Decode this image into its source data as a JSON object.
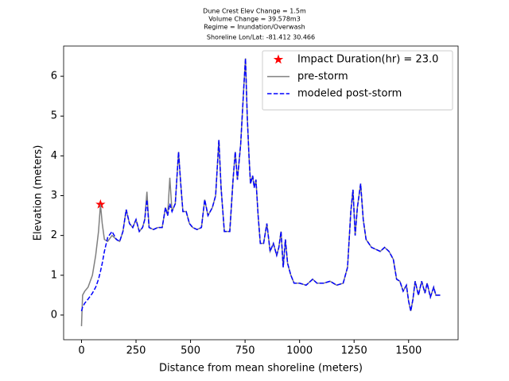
{
  "chart_data": {
    "type": "line",
    "title": [
      "Dune Crest Elev Change = 1.5m",
      "Volume Change = 39.578m3",
      "Regime = Inundation/Overwash",
      "Shoreline Lon/Lat: -81.412 30.466"
    ],
    "x_label": "Distance from mean shoreline (meters)",
    "y_label": "Elevation (meters)",
    "xlim": [
      -82,
      1727
    ],
    "ylim": [
      -0.62,
      6.76
    ],
    "xticks": [
      0,
      250,
      500,
      750,
      1000,
      1250,
      1500
    ],
    "yticks": [
      0,
      1,
      2,
      3,
      4,
      5,
      6
    ],
    "legend": "upper right",
    "x": [
      0,
      5,
      15,
      30,
      50,
      65,
      78,
      87,
      95,
      105,
      120,
      140,
      160,
      175,
      190,
      205,
      220,
      235,
      250,
      265,
      280,
      290,
      300,
      310,
      330,
      350,
      370,
      385,
      395,
      405,
      415,
      430,
      445,
      455,
      465,
      480,
      495,
      510,
      530,
      550,
      565,
      580,
      600,
      615,
      630,
      640,
      655,
      680,
      695,
      705,
      715,
      730,
      745,
      752,
      760,
      768,
      775,
      785,
      792,
      800,
      810,
      820,
      835,
      850,
      865,
      880,
      895,
      905,
      915,
      925,
      935,
      945,
      960,
      975,
      1000,
      1030,
      1060,
      1080,
      1110,
      1140,
      1170,
      1200,
      1220,
      1235,
      1245,
      1255,
      1265,
      1280,
      1292,
      1305,
      1330,
      1350,
      1370,
      1390,
      1410,
      1430,
      1445,
      1460,
      1475,
      1490,
      1500,
      1510,
      1520,
      1530,
      1545,
      1560,
      1575,
      1585,
      1600,
      1615,
      1625,
      1645
    ],
    "series": [
      {
        "name": "Impact Duration(hr) = 23.0",
        "style": "star",
        "color": "#ff0000",
        "x": [
          87
        ],
        "values": [
          2.78
        ]
      },
      {
        "name": "pre-storm",
        "style": "solid",
        "color": "#808080",
        "values": [
          -0.28,
          0.5,
          0.6,
          0.7,
          1.0,
          1.5,
          2.1,
          2.78,
          2.3,
          1.9,
          1.85,
          2.0,
          1.9,
          1.85,
          2.1,
          2.65,
          2.3,
          2.2,
          2.4,
          2.1,
          2.2,
          2.4,
          3.1,
          2.2,
          2.15,
          2.2,
          2.2,
          2.7,
          2.5,
          3.45,
          2.6,
          2.8,
          4.1,
          3.3,
          2.6,
          2.6,
          2.3,
          2.2,
          2.15,
          2.2,
          2.9,
          2.5,
          2.7,
          3.0,
          4.4,
          3.2,
          2.1,
          2.1,
          3.4,
          4.1,
          3.4,
          4.3,
          5.8,
          6.45,
          5.0,
          4.0,
          3.3,
          3.5,
          3.2,
          3.4,
          2.5,
          1.8,
          1.8,
          2.3,
          1.6,
          1.8,
          1.5,
          1.7,
          2.1,
          1.2,
          1.9,
          1.3,
          1.0,
          0.8,
          0.8,
          0.75,
          0.9,
          0.8,
          0.8,
          0.85,
          0.75,
          0.8,
          1.2,
          2.6,
          3.15,
          2.0,
          2.7,
          3.3,
          2.4,
          1.9,
          1.7,
          1.65,
          1.6,
          1.7,
          1.6,
          1.4,
          0.9,
          0.85,
          0.6,
          0.75,
          0.35,
          0.1,
          0.4,
          0.85,
          0.5,
          0.85,
          0.55,
          0.8,
          0.45,
          0.7,
          0.5,
          0.5
        ]
      },
      {
        "name": "modeled post-storm",
        "style": "dashed",
        "color": "#0000ff",
        "values": [
          0.1,
          0.2,
          0.3,
          0.4,
          0.55,
          0.7,
          0.9,
          1.1,
          1.3,
          1.6,
          1.95,
          2.1,
          1.9,
          1.85,
          2.1,
          2.65,
          2.3,
          2.2,
          2.4,
          2.1,
          2.2,
          2.4,
          2.9,
          2.2,
          2.15,
          2.2,
          2.2,
          2.7,
          2.5,
          2.8,
          2.6,
          2.8,
          4.1,
          3.3,
          2.6,
          2.6,
          2.3,
          2.2,
          2.15,
          2.2,
          2.9,
          2.5,
          2.7,
          3.0,
          4.4,
          3.2,
          2.1,
          2.1,
          3.4,
          4.1,
          3.4,
          4.3,
          5.8,
          6.45,
          5.0,
          4.0,
          3.3,
          3.5,
          3.2,
          3.4,
          2.5,
          1.8,
          1.8,
          2.3,
          1.6,
          1.8,
          1.5,
          1.7,
          2.1,
          1.2,
          1.9,
          1.3,
          1.0,
          0.8,
          0.8,
          0.75,
          0.9,
          0.8,
          0.8,
          0.85,
          0.75,
          0.8,
          1.2,
          2.6,
          3.15,
          2.0,
          2.7,
          3.3,
          2.4,
          1.9,
          1.7,
          1.65,
          1.6,
          1.7,
          1.6,
          1.4,
          0.9,
          0.85,
          0.6,
          0.75,
          0.35,
          0.1,
          0.4,
          0.85,
          0.5,
          0.85,
          0.55,
          0.8,
          0.45,
          0.7,
          0.5,
          0.5
        ]
      }
    ]
  }
}
